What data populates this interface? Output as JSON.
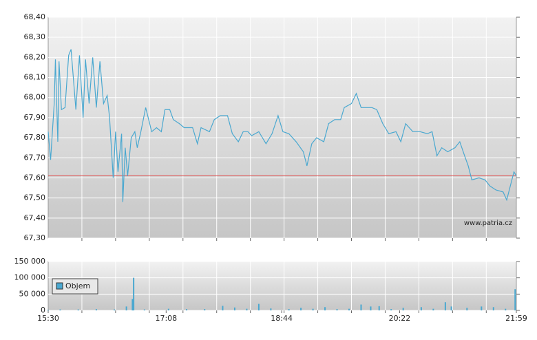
{
  "chart_data": [
    {
      "type": "line",
      "watermark": "www.patria.cz",
      "xlim": [
        930,
        1319
      ],
      "xgrid": [
        958,
        986,
        1014,
        1042,
        1070,
        1098,
        1126,
        1154,
        1182,
        1210,
        1238,
        1266,
        1294
      ],
      "ylim": [
        67.3,
        68.4
      ],
      "yticks": [
        {
          "value": 67.3,
          "label": "67,30"
        },
        {
          "value": 67.4,
          "label": "67,40"
        },
        {
          "value": 67.5,
          "label": "67,50"
        },
        {
          "value": 67.6,
          "label": "67,60"
        },
        {
          "value": 67.7,
          "label": "67,70"
        },
        {
          "value": 67.8,
          "label": "67,80"
        },
        {
          "value": 67.9,
          "label": "67,90"
        },
        {
          "value": 68.0,
          "label": "68,00"
        },
        {
          "value": 68.1,
          "label": "68,10"
        },
        {
          "value": 68.2,
          "label": "68,20"
        },
        {
          "value": 68.3,
          "label": "68,30"
        },
        {
          "value": 68.4,
          "label": "68,40"
        }
      ],
      "grid": true,
      "ref_line": {
        "value": 67.61,
        "color": "#e05050"
      },
      "x": [
        930,
        932,
        935,
        936,
        938,
        939,
        941,
        944,
        947,
        949,
        953,
        956,
        959,
        961,
        964,
        967,
        970,
        973,
        976,
        979,
        981,
        984,
        986,
        988,
        991,
        992,
        994,
        996,
        999,
        1002,
        1004,
        1007,
        1011,
        1016,
        1020,
        1024,
        1027,
        1031,
        1034,
        1039,
        1043,
        1050,
        1054,
        1057,
        1064,
        1068,
        1073,
        1079,
        1083,
        1088,
        1092,
        1096,
        1099,
        1105,
        1111,
        1116,
        1121,
        1125,
        1130,
        1136,
        1142,
        1145,
        1149,
        1153,
        1159,
        1163,
        1168,
        1173,
        1176,
        1182,
        1186,
        1190,
        1194,
        1199,
        1203,
        1208,
        1213,
        1219,
        1223,
        1227,
        1233,
        1239,
        1245,
        1249,
        1253,
        1257,
        1262,
        1268,
        1272,
        1276,
        1279,
        1282,
        1288,
        1293,
        1297,
        1302,
        1308,
        1311,
        1314,
        1317,
        1319
      ],
      "series": [
        {
          "color": "#4aa8d0",
          "values": [
            67.83,
            67.69,
            67.97,
            68.19,
            67.78,
            68.18,
            67.94,
            67.95,
            68.21,
            68.24,
            67.94,
            68.21,
            67.9,
            68.19,
            67.97,
            68.2,
            67.95,
            68.18,
            67.97,
            68.01,
            67.9,
            67.6,
            67.83,
            67.63,
            67.82,
            67.48,
            67.75,
            67.61,
            67.8,
            67.83,
            67.75,
            67.83,
            67.95,
            67.83,
            67.85,
            67.83,
            67.94,
            67.94,
            67.89,
            67.87,
            67.85,
            67.85,
            67.77,
            67.85,
            67.83,
            67.89,
            67.91,
            67.91,
            67.82,
            67.78,
            67.83,
            67.83,
            67.81,
            67.83,
            67.77,
            67.82,
            67.91,
            67.83,
            67.82,
            67.78,
            67.73,
            67.66,
            67.77,
            67.8,
            67.78,
            67.87,
            67.89,
            67.89,
            67.95,
            67.97,
            68.02,
            67.95,
            67.95,
            67.95,
            67.94,
            67.87,
            67.82,
            67.83,
            67.78,
            67.87,
            67.83,
            67.83,
            67.82,
            67.83,
            67.71,
            67.75,
            67.73,
            67.75,
            67.78,
            67.71,
            67.66,
            67.59,
            67.6,
            67.59,
            67.56,
            67.54,
            67.53,
            67.49,
            67.56,
            67.63,
            67.61
          ]
        }
      ]
    },
    {
      "type": "bar",
      "xlim": [
        930,
        1319
      ],
      "xticks": [
        {
          "value": 930,
          "label": "15:30"
        },
        {
          "value": 1028,
          "label": "17:08"
        },
        {
          "value": 1124,
          "label": "18:44"
        },
        {
          "value": 1222,
          "label": "20:22"
        },
        {
          "value": 1319,
          "label": "21:59"
        }
      ],
      "xgrid": [
        958,
        986,
        1014,
        1042,
        1070,
        1098,
        1126,
        1154,
        1182,
        1210,
        1238,
        1266,
        1294
      ],
      "ylim": [
        0,
        150000
      ],
      "yticks": [
        0,
        {
          "value": 50000,
          "label": "50 000"
        },
        {
          "value": 100000,
          "label": "100 000"
        },
        {
          "value": 150000,
          "label": "150 000"
        }
      ],
      "grid": true,
      "legend": "upper-left",
      "x": [
        930,
        940,
        955,
        970,
        985,
        995,
        1000,
        1001,
        1010,
        1030,
        1045,
        1060,
        1075,
        1085,
        1095,
        1105,
        1115,
        1130,
        1140,
        1150,
        1160,
        1170,
        1180,
        1190,
        1198,
        1205,
        1215,
        1225,
        1240,
        1250,
        1260,
        1265,
        1278,
        1290,
        1300,
        1310,
        1318
      ],
      "series": [
        {
          "name": "Objem",
          "color": "#4aa8d0",
          "values": [
            2000,
            3000,
            3000,
            4000,
            3000,
            12000,
            35000,
            100000,
            3000,
            5000,
            4000,
            4000,
            14000,
            9000,
            5000,
            20000,
            6000,
            4000,
            8000,
            5000,
            10000,
            4000,
            5000,
            18000,
            12000,
            13000,
            4000,
            8000,
            10000,
            5000,
            25000,
            12000,
            8000,
            12000,
            10000,
            5000,
            65000
          ]
        }
      ]
    }
  ]
}
